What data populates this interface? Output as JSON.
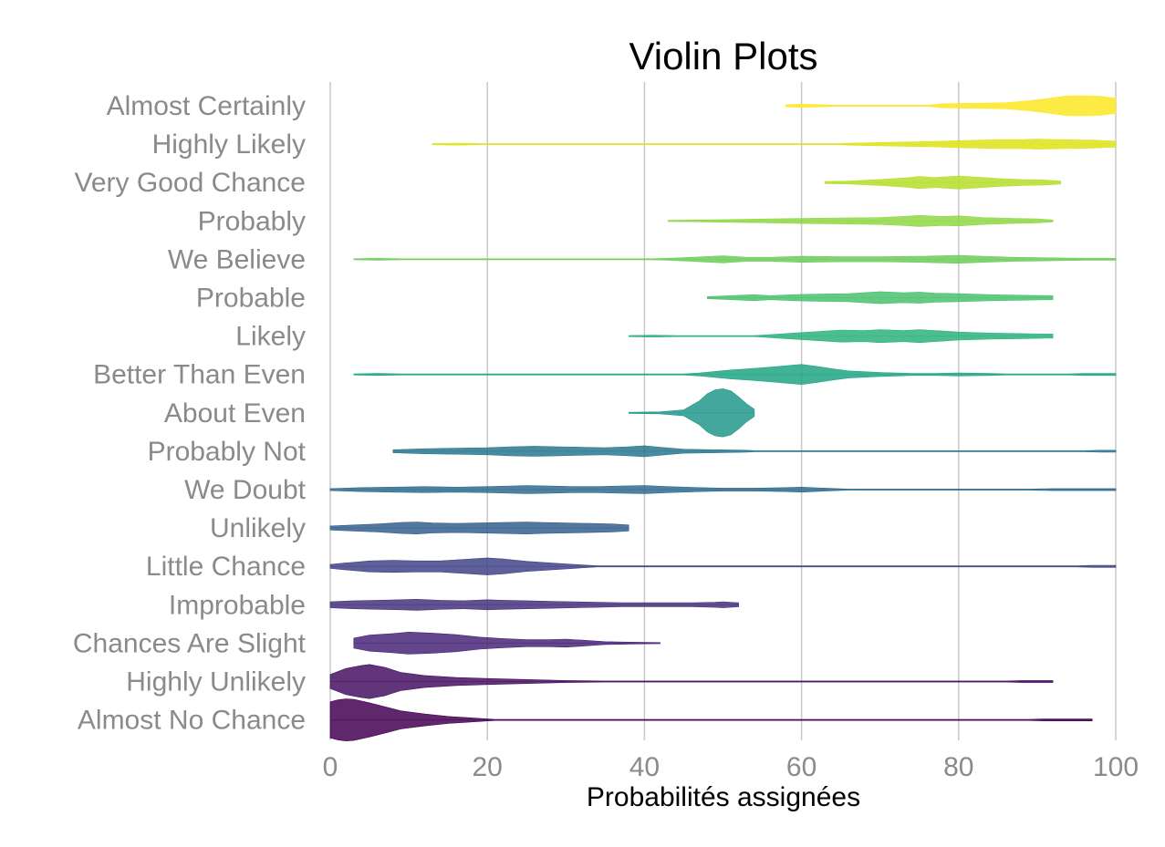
{
  "chart_data": {
    "type": "violin",
    "title": "Violin Plots",
    "xlabel": "Probabilités assignées",
    "ylabel": "",
    "xlim": [
      0,
      100
    ],
    "xticks": [
      0,
      20,
      40,
      60,
      80,
      100
    ],
    "grid": "vertical-major",
    "legend": "none",
    "categories": [
      {
        "name": "Almost Certainly",
        "color": "#fde725",
        "range": [
          58,
          100
        ],
        "density": [
          [
            58,
            0.1
          ],
          [
            60,
            0.15
          ],
          [
            63,
            0.1
          ],
          [
            64,
            0
          ],
          [
            76,
            0
          ],
          [
            78,
            0.2
          ],
          [
            82,
            0.25
          ],
          [
            86,
            0.3
          ],
          [
            89,
            0.5
          ],
          [
            92,
            0.8
          ],
          [
            94,
            1.0
          ],
          [
            96,
            1.0
          ],
          [
            98,
            0.95
          ],
          [
            100,
            0.75
          ]
        ]
      },
      {
        "name": "Highly Likely",
        "color": "#dde318",
        "range": [
          13,
          100
        ],
        "density": [
          [
            13,
            0.05
          ],
          [
            16,
            0.1
          ],
          [
            19,
            0.05
          ],
          [
            20,
            0
          ],
          [
            65,
            0
          ],
          [
            66,
            0.1
          ],
          [
            72,
            0.2
          ],
          [
            76,
            0.25
          ],
          [
            80,
            0.35
          ],
          [
            85,
            0.45
          ],
          [
            88,
            0.45
          ],
          [
            90,
            0.5
          ],
          [
            93,
            0.45
          ],
          [
            97,
            0.4
          ],
          [
            100,
            0.3
          ]
        ]
      },
      {
        "name": "Very Good Chance",
        "color": "#b5de2b",
        "range": [
          63,
          93
        ],
        "density": [
          [
            63,
            0.1
          ],
          [
            66,
            0.15
          ],
          [
            70,
            0.3
          ],
          [
            73,
            0.45
          ],
          [
            75,
            0.6
          ],
          [
            77,
            0.5
          ],
          [
            80,
            0.65
          ],
          [
            82,
            0.55
          ],
          [
            85,
            0.4
          ],
          [
            88,
            0.3
          ],
          [
            91,
            0.25
          ],
          [
            93,
            0.15
          ]
        ]
      },
      {
        "name": "Probably",
        "color": "#8fd744",
        "range": [
          43,
          92
        ],
        "density": [
          [
            43,
            0.05
          ],
          [
            48,
            0.1
          ],
          [
            52,
            0.15
          ],
          [
            56,
            0.2
          ],
          [
            60,
            0.25
          ],
          [
            65,
            0.3
          ],
          [
            70,
            0.35
          ],
          [
            73,
            0.45
          ],
          [
            75,
            0.55
          ],
          [
            78,
            0.45
          ],
          [
            80,
            0.5
          ],
          [
            83,
            0.35
          ],
          [
            87,
            0.25
          ],
          [
            90,
            0.2
          ],
          [
            92,
            0.1
          ]
        ]
      },
      {
        "name": "We Believe",
        "color": "#6ccd5a",
        "range": [
          3,
          100
        ],
        "density": [
          [
            3,
            0.05
          ],
          [
            6,
            0.1
          ],
          [
            9,
            0.05
          ],
          [
            10,
            0
          ],
          [
            41,
            0
          ],
          [
            43,
            0.1
          ],
          [
            46,
            0.2
          ],
          [
            50,
            0.35
          ],
          [
            53,
            0.2
          ],
          [
            56,
            0.2
          ],
          [
            60,
            0.3
          ],
          [
            65,
            0.25
          ],
          [
            70,
            0.25
          ],
          [
            75,
            0.3
          ],
          [
            80,
            0.4
          ],
          [
            83,
            0.3
          ],
          [
            87,
            0.2
          ],
          [
            92,
            0.15
          ],
          [
            96,
            0.1
          ],
          [
            100,
            0.1
          ]
        ]
      },
      {
        "name": "Probable",
        "color": "#4ac16d",
        "range": [
          48,
          92
        ],
        "density": [
          [
            48,
            0.1
          ],
          [
            51,
            0.2
          ],
          [
            54,
            0.3
          ],
          [
            56,
            0.2
          ],
          [
            59,
            0.3
          ],
          [
            62,
            0.35
          ],
          [
            66,
            0.4
          ],
          [
            70,
            0.6
          ],
          [
            73,
            0.5
          ],
          [
            75,
            0.55
          ],
          [
            77,
            0.45
          ],
          [
            80,
            0.4
          ],
          [
            84,
            0.3
          ],
          [
            88,
            0.25
          ],
          [
            92,
            0.2
          ]
        ]
      },
      {
        "name": "Likely",
        "color": "#2db27d",
        "range": [
          38,
          92
        ],
        "density": [
          [
            38,
            0.05
          ],
          [
            41,
            0.1
          ],
          [
            44,
            0.05
          ],
          [
            46,
            0
          ],
          [
            54,
            0
          ],
          [
            56,
            0.15
          ],
          [
            59,
            0.3
          ],
          [
            62,
            0.45
          ],
          [
            65,
            0.6
          ],
          [
            68,
            0.55
          ],
          [
            70,
            0.65
          ],
          [
            73,
            0.55
          ],
          [
            75,
            0.65
          ],
          [
            78,
            0.5
          ],
          [
            80,
            0.4
          ],
          [
            84,
            0.3
          ],
          [
            88,
            0.25
          ],
          [
            92,
            0.2
          ]
        ]
      },
      {
        "name": "Better Than Even",
        "color": "#21a585",
        "range": [
          3,
          100
        ],
        "density": [
          [
            3,
            0.05
          ],
          [
            6,
            0.1
          ],
          [
            9,
            0.05
          ],
          [
            10,
            0
          ],
          [
            45,
            0
          ],
          [
            47,
            0.15
          ],
          [
            49,
            0.3
          ],
          [
            51,
            0.45
          ],
          [
            54,
            0.6
          ],
          [
            57,
            0.8
          ],
          [
            60,
            1.0
          ],
          [
            62,
            0.8
          ],
          [
            64,
            0.55
          ],
          [
            66,
            0.35
          ],
          [
            70,
            0.2
          ],
          [
            74,
            0.1
          ],
          [
            77,
            0.1
          ],
          [
            80,
            0.15
          ],
          [
            84,
            0.1
          ],
          [
            86,
            0
          ],
          [
            94,
            0
          ],
          [
            96,
            0.1
          ],
          [
            100,
            0.1
          ]
        ]
      },
      {
        "name": "About Even",
        "color": "#23988c",
        "range": [
          38,
          54
        ],
        "density": [
          [
            38,
            0.05
          ],
          [
            42,
            0.1
          ],
          [
            45,
            0.3
          ],
          [
            47,
            1.2
          ],
          [
            48,
            1.9
          ],
          [
            49,
            2.3
          ],
          [
            50,
            2.4
          ],
          [
            51,
            2.2
          ],
          [
            52,
            1.6
          ],
          [
            53,
            0.9
          ],
          [
            54,
            0.35
          ]
        ]
      },
      {
        "name": "Probably Not",
        "color": "#2a788e",
        "range": [
          8,
          100
        ],
        "density": [
          [
            8,
            0.15
          ],
          [
            12,
            0.25
          ],
          [
            16,
            0.3
          ],
          [
            20,
            0.35
          ],
          [
            23,
            0.45
          ],
          [
            26,
            0.5
          ],
          [
            29,
            0.45
          ],
          [
            32,
            0.4
          ],
          [
            35,
            0.35
          ],
          [
            38,
            0.45
          ],
          [
            40,
            0.55
          ],
          [
            42,
            0.4
          ],
          [
            45,
            0.2
          ],
          [
            49,
            0.15
          ],
          [
            53,
            0.1
          ],
          [
            54,
            0
          ],
          [
            96,
            0
          ],
          [
            98,
            0.1
          ],
          [
            100,
            0.1
          ]
        ]
      },
      {
        "name": "We Doubt",
        "color": "#2f6c8e",
        "range": [
          0,
          100
        ],
        "density": [
          [
            0,
            0.1
          ],
          [
            4,
            0.2
          ],
          [
            8,
            0.25
          ],
          [
            12,
            0.3
          ],
          [
            16,
            0.25
          ],
          [
            20,
            0.3
          ],
          [
            23,
            0.35
          ],
          [
            25,
            0.4
          ],
          [
            28,
            0.35
          ],
          [
            31,
            0.3
          ],
          [
            34,
            0.3
          ],
          [
            37,
            0.35
          ],
          [
            40,
            0.4
          ],
          [
            43,
            0.3
          ],
          [
            47,
            0.2
          ],
          [
            50,
            0.15
          ],
          [
            54,
            0.15
          ],
          [
            58,
            0.2
          ],
          [
            60,
            0.25
          ],
          [
            63,
            0.15
          ],
          [
            66,
            0.05
          ],
          [
            67,
            0
          ],
          [
            89,
            0
          ],
          [
            92,
            0.1
          ],
          [
            100,
            0.1
          ]
        ]
      },
      {
        "name": "Unlikely",
        "color": "#355f8d",
        "range": [
          0,
          38
        ],
        "density": [
          [
            0,
            0.2
          ],
          [
            3,
            0.3
          ],
          [
            6,
            0.4
          ],
          [
            9,
            0.55
          ],
          [
            11,
            0.6
          ],
          [
            13,
            0.5
          ],
          [
            16,
            0.45
          ],
          [
            19,
            0.5
          ],
          [
            22,
            0.55
          ],
          [
            25,
            0.6
          ],
          [
            27,
            0.55
          ],
          [
            30,
            0.5
          ],
          [
            33,
            0.45
          ],
          [
            36,
            0.4
          ],
          [
            38,
            0.3
          ]
        ]
      },
      {
        "name": "Little Chance",
        "color": "#414487",
        "range": [
          0,
          100
        ],
        "density": [
          [
            0,
            0.2
          ],
          [
            2,
            0.35
          ],
          [
            5,
            0.55
          ],
          [
            8,
            0.6
          ],
          [
            11,
            0.55
          ],
          [
            14,
            0.55
          ],
          [
            17,
            0.7
          ],
          [
            20,
            0.85
          ],
          [
            22,
            0.75
          ],
          [
            25,
            0.5
          ],
          [
            28,
            0.35
          ],
          [
            31,
            0.2
          ],
          [
            33,
            0.1
          ],
          [
            34,
            0
          ],
          [
            95,
            0
          ],
          [
            97,
            0.1
          ],
          [
            100,
            0.1
          ]
        ]
      },
      {
        "name": "Improbable",
        "color": "#46337e",
        "range": [
          0,
          52
        ],
        "density": [
          [
            0,
            0.3
          ],
          [
            3,
            0.4
          ],
          [
            6,
            0.45
          ],
          [
            9,
            0.5
          ],
          [
            11,
            0.55
          ],
          [
            14,
            0.45
          ],
          [
            17,
            0.4
          ],
          [
            20,
            0.5
          ],
          [
            22,
            0.45
          ],
          [
            25,
            0.4
          ],
          [
            28,
            0.35
          ],
          [
            31,
            0.3
          ],
          [
            34,
            0.25
          ],
          [
            37,
            0.2
          ],
          [
            40,
            0.2
          ],
          [
            43,
            0.2
          ],
          [
            46,
            0.2
          ],
          [
            49,
            0.25
          ],
          [
            50,
            0.3
          ],
          [
            52,
            0.2
          ]
        ]
      },
      {
        "name": "Chances Are Slight",
        "color": "#482677",
        "range": [
          3,
          42
        ],
        "density": [
          [
            3,
            0.5
          ],
          [
            5,
            0.8
          ],
          [
            8,
            0.95
          ],
          [
            10,
            1.1
          ],
          [
            13,
            1.0
          ],
          [
            16,
            0.85
          ],
          [
            19,
            0.6
          ],
          [
            22,
            0.45
          ],
          [
            25,
            0.35
          ],
          [
            28,
            0.35
          ],
          [
            30,
            0.4
          ],
          [
            32,
            0.3
          ],
          [
            35,
            0.15
          ],
          [
            38,
            0.1
          ],
          [
            42,
            0.05
          ]
        ]
      },
      {
        "name": "Highly Unlikely",
        "color": "#471063",
        "range": [
          0,
          92
        ],
        "density": [
          [
            0,
            0.7
          ],
          [
            2,
            1.3
          ],
          [
            4,
            1.6
          ],
          [
            5,
            1.7
          ],
          [
            7,
            1.4
          ],
          [
            9,
            0.9
          ],
          [
            12,
            0.6
          ],
          [
            16,
            0.4
          ],
          [
            20,
            0.3
          ],
          [
            25,
            0.2
          ],
          [
            30,
            0.1
          ],
          [
            35,
            0.05
          ],
          [
            36,
            0
          ],
          [
            86,
            0
          ],
          [
            88,
            0.1
          ],
          [
            92,
            0.1
          ]
        ]
      },
      {
        "name": "Almost No Chance",
        "color": "#440154",
        "range": [
          0,
          97
        ],
        "density": [
          [
            0,
            1.8
          ],
          [
            1,
            2.0
          ],
          [
            2,
            2.1
          ],
          [
            3,
            2.05
          ],
          [
            5,
            1.7
          ],
          [
            7,
            1.3
          ],
          [
            9,
            0.9
          ],
          [
            12,
            0.6
          ],
          [
            15,
            0.35
          ],
          [
            18,
            0.2
          ],
          [
            21,
            0.05
          ],
          [
            22,
            0
          ],
          [
            89,
            0
          ],
          [
            91,
            0.1
          ],
          [
            97,
            0.1
          ]
        ]
      }
    ]
  }
}
